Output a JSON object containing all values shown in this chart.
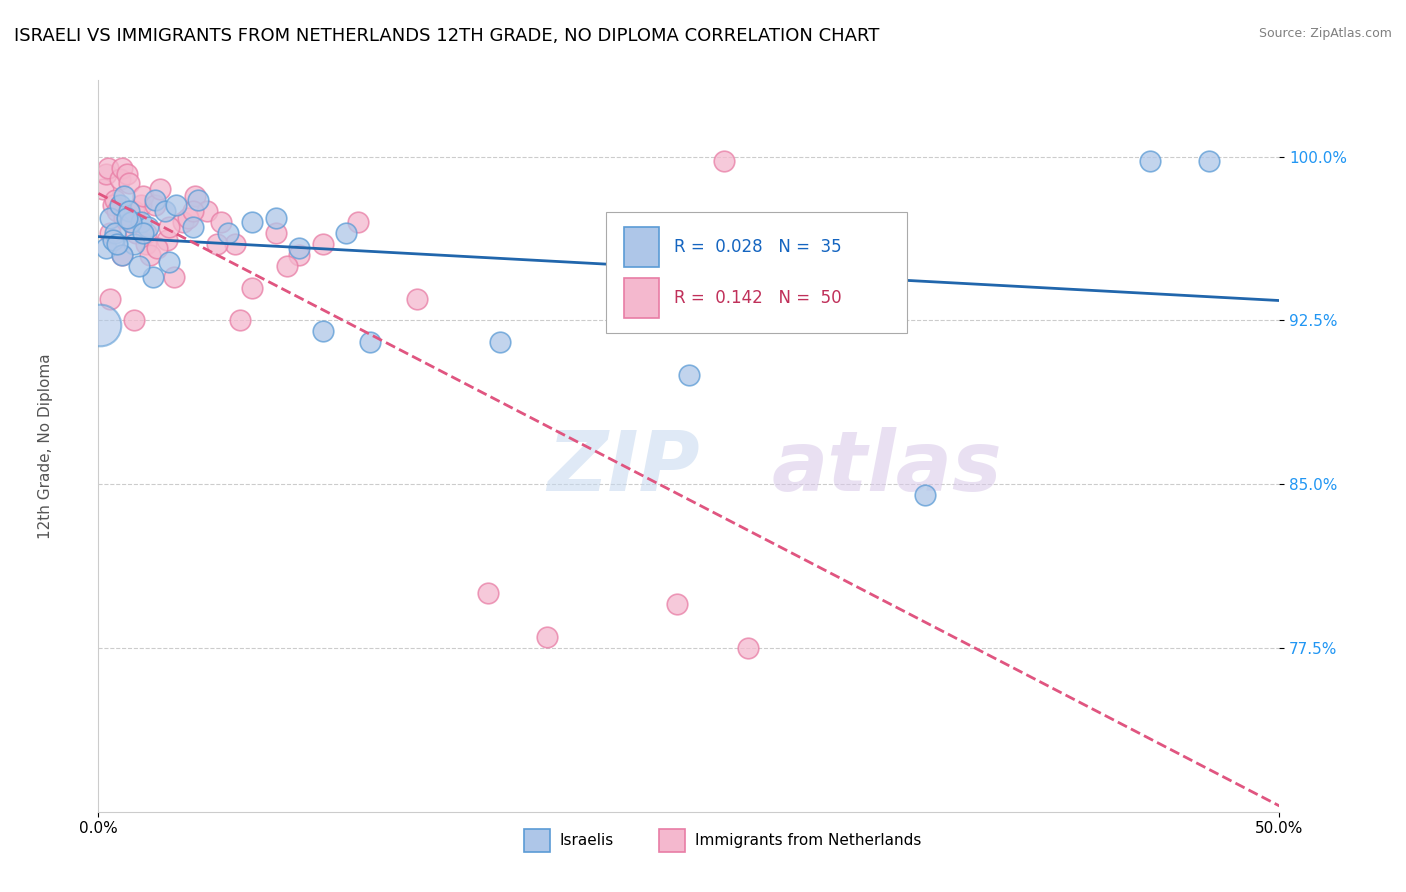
{
  "title": "ISRAELI VS IMMIGRANTS FROM NETHERLANDS 12TH GRADE, NO DIPLOMA CORRELATION CHART",
  "source": "Source: ZipAtlas.com",
  "ylabel": "12th Grade, No Diploma",
  "y_ticks": [
    77.5,
    85.0,
    92.5,
    100.0
  ],
  "y_tick_labels": [
    "77.5%",
    "85.0%",
    "92.5%",
    "100.0%"
  ],
  "xlim": [
    0.0,
    50.0
  ],
  "ylim": [
    70.0,
    103.5
  ],
  "legend_R_blue": "0.028",
  "legend_N_blue": "35",
  "legend_R_pink": "0.142",
  "legend_N_pink": "50",
  "blue_face_color": "#aec6e8",
  "blue_edge_color": "#5b9bd5",
  "pink_face_color": "#f4b8ce",
  "pink_edge_color": "#e87da5",
  "blue_line_color": "#2166ac",
  "pink_line_color": "#e05580",
  "watermark_zip": "ZIP",
  "watermark_atlas": "atlas",
  "israelis_x": [
    0.3,
    0.5,
    0.7,
    0.9,
    1.1,
    1.3,
    1.5,
    1.8,
    2.1,
    2.4,
    2.8,
    3.3,
    4.2,
    5.5,
    7.5,
    9.5,
    11.5,
    25.0,
    35.0,
    44.5,
    47.0,
    0.6,
    1.0,
    1.4,
    1.9,
    2.3,
    3.0,
    4.0,
    6.5,
    8.5,
    10.5,
    17.0,
    0.8,
    1.2,
    1.7
  ],
  "israelis_y": [
    95.8,
    97.2,
    96.5,
    97.8,
    98.2,
    97.5,
    96.0,
    97.0,
    96.8,
    98.0,
    97.5,
    97.8,
    98.0,
    96.5,
    97.2,
    92.0,
    91.5,
    90.0,
    84.5,
    99.8,
    99.8,
    96.2,
    95.5,
    97.0,
    96.5,
    94.5,
    95.2,
    96.8,
    97.0,
    95.8,
    96.5,
    91.5,
    96.0,
    97.2,
    95.0
  ],
  "immigrants_x": [
    0.2,
    0.3,
    0.4,
    0.5,
    0.6,
    0.7,
    0.8,
    0.9,
    1.0,
    1.1,
    1.2,
    1.3,
    1.4,
    1.5,
    1.6,
    1.8,
    1.9,
    2.0,
    2.2,
    2.4,
    2.6,
    2.9,
    3.2,
    3.6,
    4.1,
    4.6,
    5.2,
    5.8,
    6.5,
    7.5,
    8.5,
    9.5,
    11.0,
    13.5,
    16.5,
    19.0,
    24.5,
    0.5,
    1.0,
    1.5,
    2.0,
    2.5,
    3.0,
    3.8,
    5.0,
    6.0,
    8.0,
    4.0,
    26.5,
    27.5
  ],
  "immigrants_y": [
    98.5,
    99.2,
    99.5,
    96.5,
    97.8,
    98.0,
    97.5,
    99.0,
    99.5,
    97.2,
    99.2,
    98.8,
    97.0,
    97.5,
    96.5,
    97.8,
    98.2,
    96.0,
    95.5,
    97.8,
    98.5,
    96.2,
    94.5,
    97.0,
    98.2,
    97.5,
    97.0,
    96.0,
    94.0,
    96.5,
    95.5,
    96.0,
    97.0,
    93.5,
    80.0,
    78.0,
    79.5,
    93.5,
    95.5,
    92.5,
    96.5,
    95.8,
    96.8,
    97.2,
    96.0,
    92.5,
    95.0,
    97.5,
    99.8,
    77.5
  ],
  "title_fontsize": 13,
  "axis_label_fontsize": 11,
  "tick_fontsize": 11,
  "source_fontsize": 9,
  "scatter_size": 220
}
